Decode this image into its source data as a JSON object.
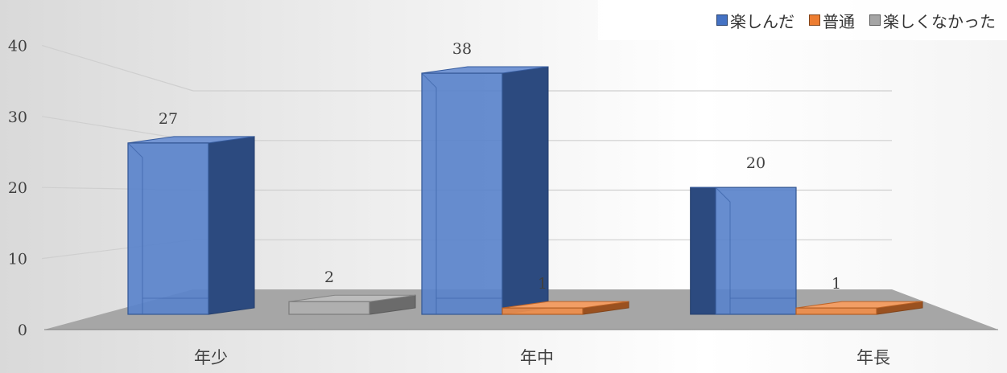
{
  "chart_data": {
    "type": "bar",
    "categories": [
      "年少",
      "年中",
      "年長"
    ],
    "series": [
      {
        "name": "楽しんだ",
        "values": [
          27,
          38,
          20
        ],
        "color": "#4472c4"
      },
      {
        "name": "普通",
        "values": [
          null,
          1,
          1
        ],
        "color": "#ed7d31"
      },
      {
        "name": "楽しくなかった",
        "values": [
          2,
          null,
          null
        ],
        "color": "#a5a5a5"
      }
    ],
    "y_ticks": [
      "0",
      "10",
      "20",
      "30",
      "40"
    ],
    "ylim": [
      0,
      40
    ],
    "grid": true,
    "legend_position": "top-right",
    "three_d": true
  }
}
